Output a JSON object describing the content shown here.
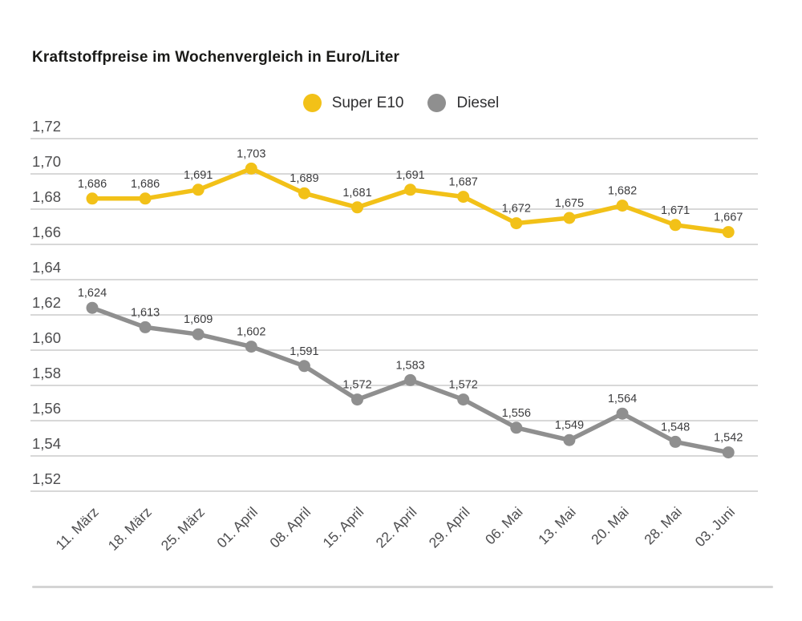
{
  "title": "Kraftstoffpreise im Wochenvergleich in Euro/Liter",
  "colors": {
    "super_e10": "#F2C118",
    "diesel": "#8F8F8F",
    "grid_line": "#CBCBCB",
    "axis_label": "#4D4D4F",
    "data_label": "#3C3C3E",
    "title_text": "#1A1A18",
    "separator": "#D4D4D4"
  },
  "chart_data": {
    "type": "line",
    "title": "Kraftstoffpreise im Wochenvergleich in Euro/Liter",
    "xlabel": "",
    "ylabel": "Euro/Liter",
    "grid": true,
    "legend_position": "top-center",
    "decimal_separator": ",",
    "y_min": 1.52,
    "y_max": 1.72,
    "y_step": 0.02,
    "y_ticks": [
      "1,72",
      "1,70",
      "1,68",
      "1,66",
      "1,64",
      "1,62",
      "1,60",
      "1,58",
      "1,56",
      "1,54",
      "1,52"
    ],
    "categories": [
      "11. März",
      "18. März",
      "25. März",
      "01. April",
      "08. April",
      "15. April",
      "22. April",
      "29. April",
      "06. Mai",
      "13. Mai",
      "20. Mai",
      "28. Mai",
      "03. Juni"
    ],
    "series": [
      {
        "name": "Super E10",
        "color": "#F2C118",
        "values": [
          1.686,
          1.686,
          1.691,
          1.703,
          1.689,
          1.681,
          1.691,
          1.687,
          1.672,
          1.675,
          1.682,
          1.671,
          1.667
        ],
        "labels": [
          "1,686",
          "1,686",
          "1,691",
          "1,703",
          "1,689",
          "1,681",
          "1,691",
          "1,687",
          "1,672",
          "1,675",
          "1,682",
          "1,671",
          "1,667"
        ]
      },
      {
        "name": "Diesel",
        "color": "#8F8F8F",
        "values": [
          1.624,
          1.613,
          1.609,
          1.602,
          1.591,
          1.572,
          1.583,
          1.572,
          1.556,
          1.549,
          1.564,
          1.548,
          1.542
        ],
        "labels": [
          "1,624",
          "1,613",
          "1,609",
          "1,602",
          "1,591",
          "1,572",
          "1,583",
          "1,572",
          "1,556",
          "1,549",
          "1,564",
          "1,548",
          "1,542"
        ]
      }
    ]
  }
}
